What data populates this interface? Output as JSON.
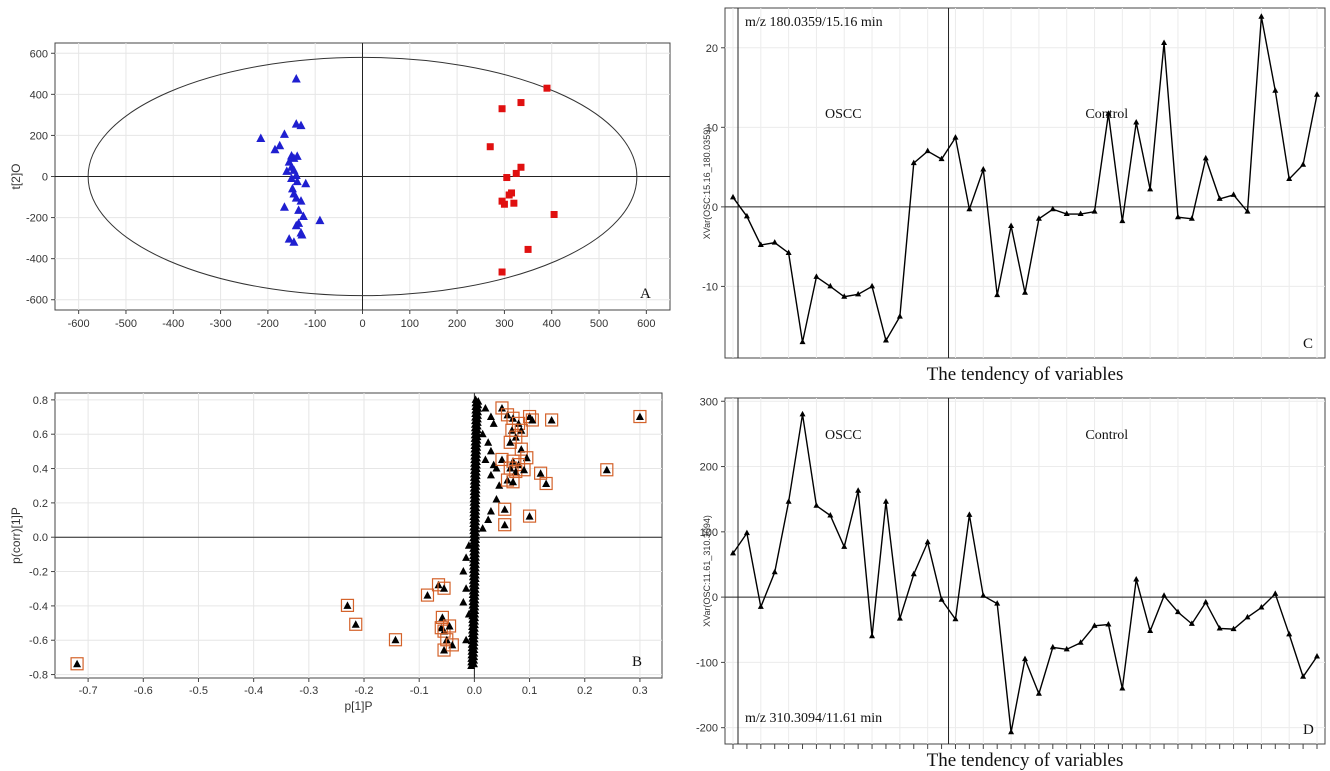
{
  "chart_data": [
    {
      "panel": "A",
      "type": "scatter",
      "panel_label": "A",
      "xlabel": "t[1]P",
      "ylabel": "t[2]O",
      "xlim": [
        -650,
        650
      ],
      "ylim": [
        -650,
        650
      ],
      "xticks": [
        -600,
        -500,
        -400,
        -300,
        -200,
        -100,
        0,
        100,
        200,
        300,
        400,
        500,
        600
      ],
      "yticks": [
        -600,
        -400,
        -200,
        0,
        200,
        400,
        600
      ],
      "ellipse": {
        "rx": 580,
        "ry": 580
      },
      "grid": true,
      "series": [
        {
          "color": "#1f1fd0",
          "marker": "triangle",
          "points": [
            [
              -140,
              475
            ],
            [
              -215,
              185
            ],
            [
              -175,
              150
            ],
            [
              -185,
              130
            ],
            [
              -165,
              205
            ],
            [
              -140,
              255
            ],
            [
              -130,
              248
            ],
            [
              -150,
              100
            ],
            [
              -145,
              88
            ],
            [
              -138,
              98
            ],
            [
              -155,
              70
            ],
            [
              -150,
              45
            ],
            [
              -145,
              30
            ],
            [
              -160,
              25
            ],
            [
              -140,
              5
            ],
            [
              -150,
              -10
            ],
            [
              -138,
              -25
            ],
            [
              -120,
              -35
            ],
            [
              -148,
              -60
            ],
            [
              -140,
              -105
            ],
            [
              -165,
              -150
            ],
            [
              -135,
              -165
            ],
            [
              -125,
              -195
            ],
            [
              -90,
              -215
            ],
            [
              -135,
              -228
            ],
            [
              -140,
              -240
            ],
            [
              -130,
              -275
            ],
            [
              -128,
              -285
            ],
            [
              -155,
              -305
            ],
            [
              -145,
              -320
            ],
            [
              -145,
              -85
            ],
            [
              -130,
              -120
            ]
          ]
        },
        {
          "color": "#e01010",
          "marker": "square",
          "points": [
            [
              390,
              430
            ],
            [
              335,
              360
            ],
            [
              295,
              330
            ],
            [
              270,
              145
            ],
            [
              335,
              45
            ],
            [
              325,
              15
            ],
            [
              305,
              -5
            ],
            [
              315,
              -80
            ],
            [
              310,
              -90
            ],
            [
              295,
              -120
            ],
            [
              300,
              -135
            ],
            [
              320,
              -130
            ],
            [
              405,
              -185
            ],
            [
              350,
              -355
            ],
            [
              295,
              -465
            ]
          ]
        }
      ]
    },
    {
      "panel": "B",
      "type": "scatter",
      "panel_label": "B",
      "xlabel": "p[1]P",
      "ylabel": "p(corr)[1]P",
      "xlim": [
        -0.76,
        0.34
      ],
      "ylim": [
        -0.82,
        0.84
      ],
      "xticks": [
        -0.7,
        -0.6,
        -0.5,
        -0.4,
        -0.3,
        -0.2,
        -0.1,
        0.0,
        0.1,
        0.2,
        0.3
      ],
      "yticks": [
        -0.8,
        -0.6,
        -0.4,
        -0.2,
        -0.0,
        0.2,
        0.4,
        0.6,
        0.8
      ],
      "grid": true,
      "boxed_points": [
        [
          -0.72,
          -0.74
        ],
        [
          -0.23,
          -0.4
        ],
        [
          -0.215,
          -0.51
        ],
        [
          -0.143,
          -0.6
        ],
        [
          -0.085,
          -0.34
        ],
        [
          -0.065,
          -0.28
        ],
        [
          -0.055,
          -0.3
        ],
        [
          -0.058,
          -0.47
        ],
        [
          -0.06,
          -0.53
        ],
        [
          -0.055,
          -0.55
        ],
        [
          -0.045,
          -0.52
        ],
        [
          -0.05,
          -0.6
        ],
        [
          -0.04,
          -0.63
        ],
        [
          -0.055,
          -0.66
        ],
        [
          0.05,
          0.75
        ],
        [
          0.06,
          0.71
        ],
        [
          0.07,
          0.69
        ],
        [
          0.08,
          0.66
        ],
        [
          0.068,
          0.62
        ],
        [
          0.085,
          0.62
        ],
        [
          0.075,
          0.58
        ],
        [
          0.065,
          0.55
        ],
        [
          0.085,
          0.51
        ],
        [
          0.095,
          0.46
        ],
        [
          0.1,
          0.7
        ],
        [
          0.105,
          0.68
        ],
        [
          0.14,
          0.68
        ],
        [
          0.05,
          0.45
        ],
        [
          0.07,
          0.44
        ],
        [
          0.08,
          0.42
        ],
        [
          0.065,
          0.4
        ],
        [
          0.075,
          0.38
        ],
        [
          0.06,
          0.33
        ],
        [
          0.07,
          0.32
        ],
        [
          0.09,
          0.39
        ],
        [
          0.12,
          0.37
        ],
        [
          0.13,
          0.31
        ],
        [
          0.24,
          0.39
        ],
        [
          0.3,
          0.7
        ],
        [
          0.055,
          0.16
        ],
        [
          0.055,
          0.07
        ],
        [
          0.1,
          0.12
        ]
      ],
      "plain_points": [
        [
          0.02,
          0.75
        ],
        [
          0.03,
          0.7
        ],
        [
          0.035,
          0.66
        ],
        [
          0.015,
          0.6
        ],
        [
          0.025,
          0.55
        ],
        [
          0.03,
          0.5
        ],
        [
          0.02,
          0.45
        ],
        [
          0.035,
          0.42
        ],
        [
          0.03,
          0.36
        ],
        [
          0.04,
          0.4
        ],
        [
          0.045,
          0.3
        ],
        [
          0.04,
          0.22
        ],
        [
          0.03,
          0.15
        ],
        [
          0.025,
          0.1
        ],
        [
          0.015,
          0.05
        ],
        [
          -0.01,
          -0.05
        ],
        [
          -0.015,
          -0.12
        ],
        [
          -0.02,
          -0.2
        ],
        [
          -0.015,
          -0.3
        ],
        [
          -0.02,
          -0.38
        ],
        [
          -0.01,
          -0.45
        ],
        [
          -0.015,
          -0.6
        ]
      ]
    },
    {
      "panel": "C",
      "type": "line",
      "panel_label": "C",
      "annotation": "m/z 180.0359/15.16 min",
      "group_labels": [
        "OSCC",
        "Control"
      ],
      "split_index": 15.5,
      "ylabel": "XVar(OSC:15.16_180.0359)",
      "xlabel": "The tendency of variables",
      "ylim": [
        -19,
        25
      ],
      "yticks": [
        -10,
        0,
        10,
        20
      ],
      "grid": true,
      "values": [
        1.2,
        -1.2,
        -4.8,
        -4.5,
        -5.8,
        -17.0,
        -8.8,
        -10.0,
        -11.3,
        -11.0,
        -10.0,
        -16.8,
        -13.8,
        5.5,
        7.0,
        6.0,
        8.7,
        -0.3,
        4.7,
        -11.1,
        -2.4,
        -10.8,
        -1.5,
        -0.3,
        -0.9,
        -0.9,
        -0.6,
        11.7,
        -1.8,
        10.6,
        2.2,
        20.6,
        -1.3,
        -1.5,
        6.1,
        1.0,
        1.5,
        -0.6,
        23.9,
        14.6,
        3.5,
        5.3,
        14.1
      ]
    },
    {
      "panel": "D",
      "type": "line",
      "panel_label": "D",
      "annotation": "m/z 310.3094/11.61 min",
      "group_labels": [
        "OSCC",
        "Control"
      ],
      "split_index": 15.5,
      "ylabel": "XVar(OSC:11.61_310.3094)",
      "xlabel": "The tendency of variables",
      "ylim": [
        -225,
        305
      ],
      "yticks": [
        -200,
        -100,
        0,
        100,
        200,
        300
      ],
      "grid": true,
      "values": [
        67,
        98,
        -15,
        38,
        146,
        280,
        140,
        125,
        77,
        163,
        -60,
        146,
        -33,
        35,
        84,
        -4,
        -34,
        126,
        2,
        -10,
        -207,
        -95,
        -148,
        -77,
        -80,
        -70,
        -44,
        -42,
        -140,
        27,
        -52,
        2,
        -23,
        -41,
        -8,
        -48,
        -49,
        -31,
        -16,
        5,
        -57,
        -122,
        -91
      ]
    }
  ]
}
